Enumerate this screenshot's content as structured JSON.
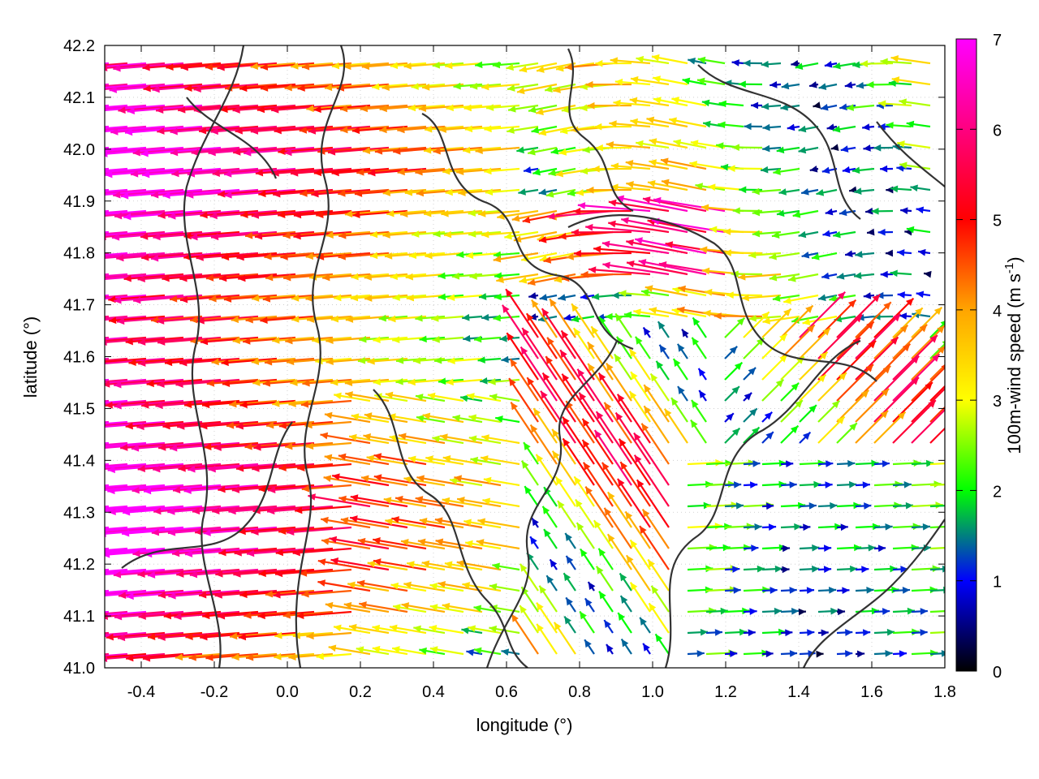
{
  "chart_data": {
    "type": "quiver",
    "title": "",
    "xlabel": "longitude (°)",
    "ylabel": "latitude (°)",
    "xlim": [
      -0.5,
      1.8
    ],
    "ylim": [
      41.0,
      42.2
    ],
    "x_ticks": [
      -0.4,
      -0.2,
      0.0,
      0.2,
      0.4,
      0.6,
      0.8,
      1.0,
      1.2,
      1.4,
      1.6,
      1.8
    ],
    "x_tick_labels": [
      "-0.4",
      "-0.2",
      "0.0",
      "0.2",
      "0.4",
      "0.6",
      "0.8",
      "1.0",
      "1.2",
      "1.4",
      "1.6",
      "1.8"
    ],
    "y_ticks": [
      41.0,
      41.1,
      41.2,
      41.3,
      41.4,
      41.5,
      41.6,
      41.7,
      41.8,
      41.9,
      42.0,
      42.1,
      42.2
    ],
    "y_tick_labels": [
      "41.0",
      "41.1",
      "41.2",
      "41.3",
      "41.4",
      "41.5",
      "41.6",
      "41.7",
      "41.8",
      "41.9",
      "42.0",
      "42.1",
      "42.2"
    ],
    "grid": true,
    "colorbar": {
      "label": "100m-wind speed (m s",
      "label_superscript": "-1",
      "label_suffix": ")",
      "range": [
        0,
        7
      ],
      "ticks": [
        0,
        1,
        2,
        3,
        4,
        5,
        6,
        7
      ],
      "tick_labels": [
        "0",
        "1",
        "2",
        "3",
        "4",
        "5",
        "6",
        "7"
      ],
      "colors": [
        "#000000",
        "#0000ff",
        "#00ff00",
        "#ffff00",
        "#ffa500",
        "#ff0000",
        "#ff00ff"
      ]
    },
    "contour_color": "#333333",
    "wind_regimes": [
      {
        "region": "west (lon -0.5 to 0.7)",
        "direction": "easterly (flow toward west)",
        "speed_range": [
          3,
          7
        ]
      },
      {
        "region": "central-north (lon 0.1 to 1.5, lat 41.6 to 42.2)",
        "direction": "easterly",
        "speed_range": [
          1,
          4
        ]
      },
      {
        "region": "southeast (lon 0.9 to 1.8, lat 41.0 to 41.4)",
        "direction": "westerly (flow toward east)",
        "speed_range": [
          1,
          3
        ]
      },
      {
        "region": "east-central (lon 1.1 to 1.6, lat 41.4 to 41.8)",
        "direction": "south-westerly",
        "speed_range": [
          3,
          6
        ]
      }
    ]
  }
}
